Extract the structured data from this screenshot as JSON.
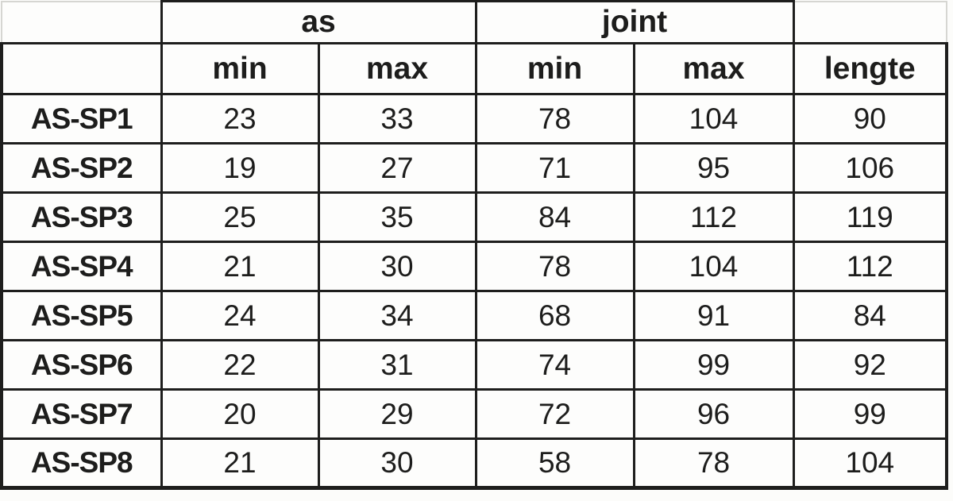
{
  "page": {
    "background": "#fcfcfa"
  },
  "colors": {
    "grid_border": "#1e1e1d",
    "faint_gridline": "#d6d6d2",
    "text": "#1d1d1c",
    "cell_background": "#fdfdfc"
  },
  "table": {
    "corner_top_left": "",
    "corner_top_right": "",
    "sub_header_corner": "",
    "groups": [
      {
        "label": "as",
        "span": 2
      },
      {
        "label": "joint",
        "span": 2
      }
    ],
    "sub_headers": [
      "min",
      "max",
      "min",
      "max",
      "lengte"
    ],
    "column_keys": [
      "as-min",
      "as-max",
      "joint-min",
      "joint-max",
      "lengte"
    ],
    "rows": [
      {
        "label": "AS-SP1",
        "values": [
          "23",
          "33",
          "78",
          "104",
          "90"
        ]
      },
      {
        "label": "AS-SP2",
        "values": [
          "19",
          "27",
          "71",
          "95",
          "106"
        ]
      },
      {
        "label": "AS-SP3",
        "values": [
          "25",
          "35",
          "84",
          "112",
          "119"
        ]
      },
      {
        "label": "AS-SP4",
        "values": [
          "21",
          "30",
          "78",
          "104",
          "112"
        ]
      },
      {
        "label": "AS-SP5",
        "values": [
          "24",
          "34",
          "68",
          "91",
          "84"
        ]
      },
      {
        "label": "AS-SP6",
        "values": [
          "22",
          "31",
          "74",
          "99",
          "92"
        ]
      },
      {
        "label": "AS-SP7",
        "values": [
          "20",
          "29",
          "72",
          "96",
          "99"
        ]
      },
      {
        "label": "AS-SP8",
        "values": [
          "21",
          "30",
          "58",
          "78",
          "104"
        ]
      }
    ]
  },
  "chart_data": {
    "type": "table",
    "title": "",
    "column_groups": [
      "",
      "as",
      "as",
      "joint",
      "joint",
      ""
    ],
    "columns": [
      "",
      "as min",
      "as max",
      "joint min",
      "joint max",
      "lengte"
    ],
    "rows": [
      [
        "AS-SP1",
        23,
        33,
        78,
        104,
        90
      ],
      [
        "AS-SP2",
        19,
        27,
        71,
        95,
        106
      ],
      [
        "AS-SP3",
        25,
        35,
        84,
        112,
        119
      ],
      [
        "AS-SP4",
        21,
        30,
        78,
        104,
        112
      ],
      [
        "AS-SP5",
        24,
        34,
        68,
        91,
        84
      ],
      [
        "AS-SP6",
        22,
        31,
        74,
        99,
        92
      ],
      [
        "AS-SP7",
        20,
        29,
        72,
        96,
        99
      ],
      [
        "AS-SP8",
        21,
        30,
        58,
        78,
        104
      ]
    ]
  }
}
